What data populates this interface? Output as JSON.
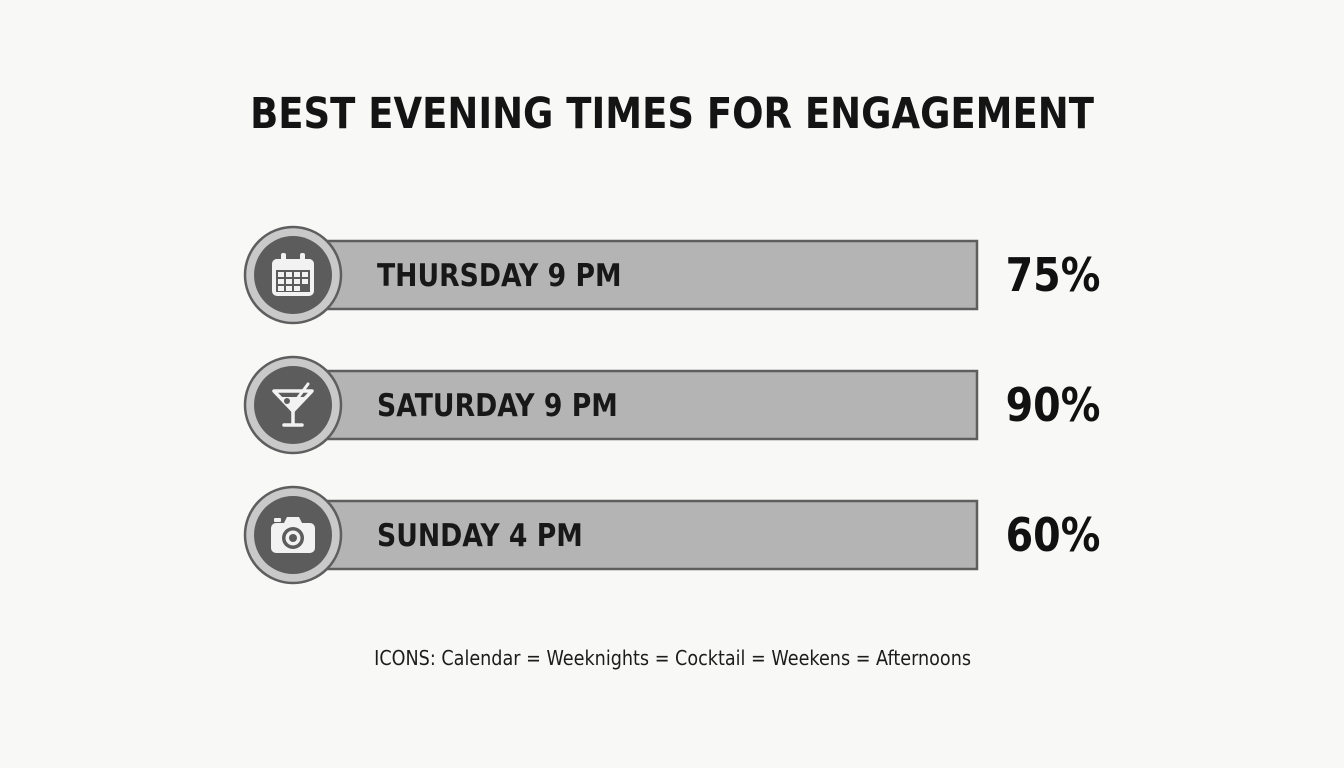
{
  "chart_data": {
    "type": "bar",
    "title": "BEST EVENING TIMES FOR ENGAGEMENT",
    "categories": [
      "THURSDAY 9 PM",
      "SATURDAY 9 PM",
      "SUNDAY 4 PM"
    ],
    "values": [
      75,
      90,
      60
    ],
    "value_labels": [
      "75%",
      "90%",
      "60%"
    ],
    "icons": [
      "calendar-icon",
      "cocktail-icon",
      "camera-icon"
    ],
    "footnote": "ICONS: Calendar = Weeknights = Cocktail = Weekens = Afternoons",
    "colors": {
      "bar_fill": "#b4b4b4",
      "bar_stroke": "#5e5e5e",
      "icon_disc": "#5c5c5c",
      "icon_ring": "#c9c9c9",
      "icon_glyph": "#f2f2f2",
      "background": "#f8f8f7"
    }
  }
}
